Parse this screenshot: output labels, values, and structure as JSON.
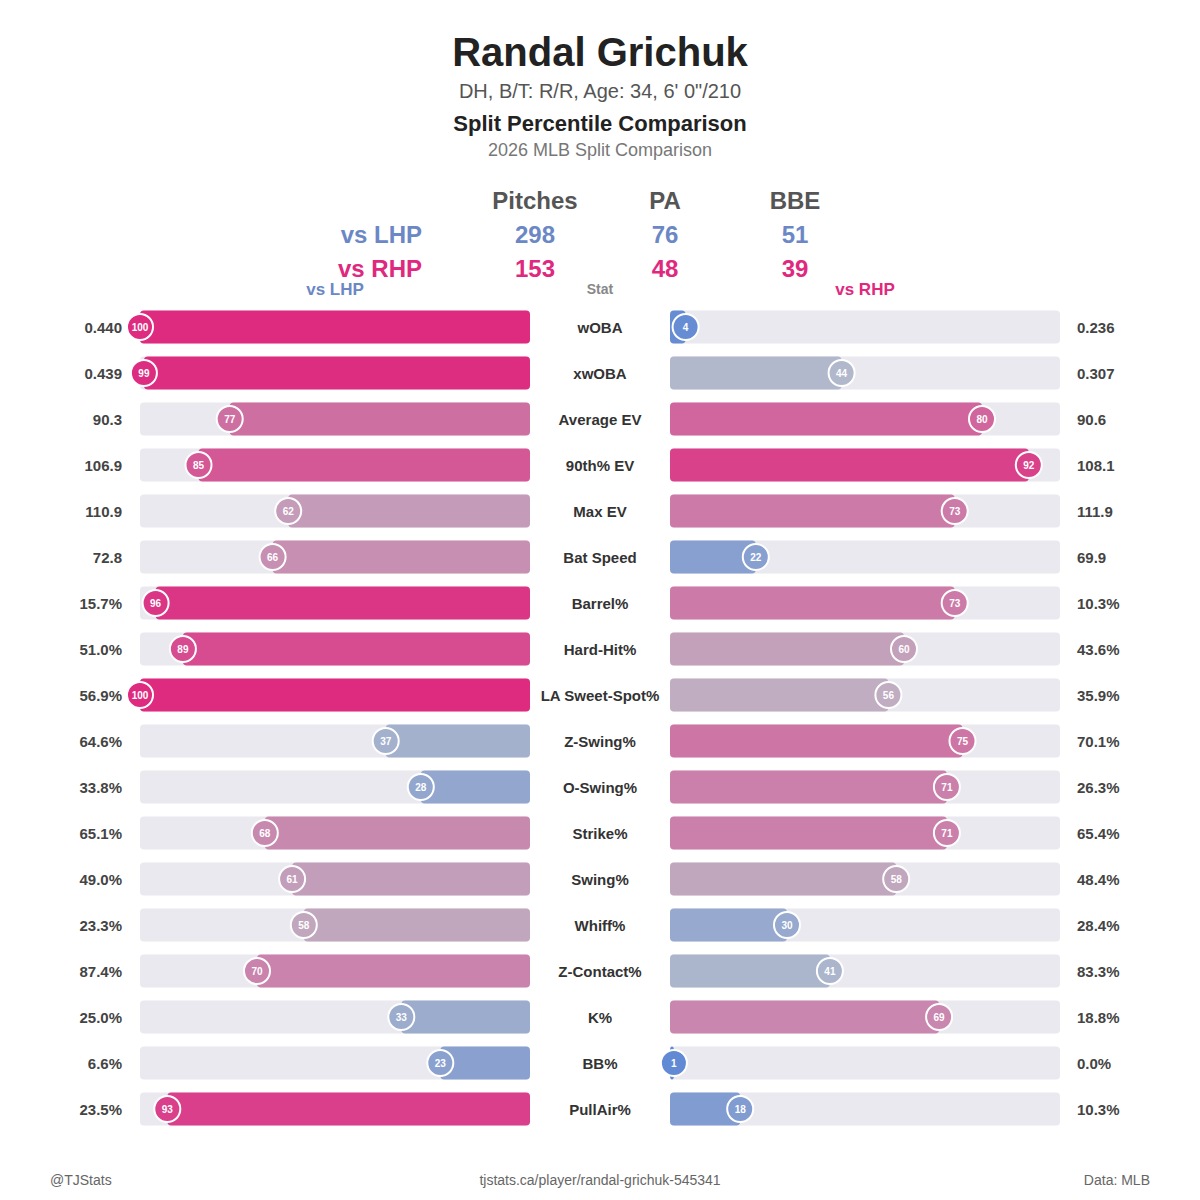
{
  "header": {
    "name": "Randal Grichuk",
    "bio": "DH, B/T: R/R, Age: 34, 6' 0\"/210"
  },
  "summary": {
    "columns": [
      "Pitches",
      "PA",
      "BBE"
    ],
    "rows": [
      {
        "label": "vs LHP",
        "values": [
          298,
          76,
          51
        ]
      },
      {
        "label": "vs RHP",
        "values": [
          153,
          48,
          39
        ]
      }
    ]
  },
  "footer": {
    "handle": "@TJStats",
    "url": "tjstats.ca/player/randal-grichuk-545341",
    "source": "Data: MLB"
  },
  "chart_data": {
    "type": "bar",
    "orientation": "horizontal",
    "title": "Split Percentile Comparison",
    "subtitle": "2026 MLB Split Comparison",
    "y_label": "Stat",
    "categories": [
      "wOBA",
      "xwOBA",
      "Average EV",
      "90th% EV",
      "Max EV",
      "Bat Speed",
      "Barrel%",
      "Hard-Hit%",
      "LA Sweet-Spot%",
      "Z-Swing%",
      "O-Swing%",
      "Strike%",
      "Swing%",
      "Whiff%",
      "Z-Contact%",
      "K%",
      "BB%",
      "PullAir%"
    ],
    "xlim": [
      0,
      100
    ],
    "tick_labels": false,
    "data_labels": true,
    "series": [
      {
        "name": "vs LHP",
        "color": "#6b87c5",
        "values": [
          100,
          99,
          77,
          85,
          62,
          66,
          96,
          89,
          100,
          37,
          28,
          68,
          61,
          58,
          70,
          33,
          23,
          93
        ],
        "stat_labels": [
          "0.440",
          "0.439",
          "90.3",
          "106.9",
          "110.9",
          "72.8",
          "15.7%",
          "51.0%",
          "56.9%",
          "64.6%",
          "33.8%",
          "65.1%",
          "49.0%",
          "23.3%",
          "87.4%",
          "25.0%",
          "6.6%",
          "23.5%"
        ]
      },
      {
        "name": "vs RHP",
        "color": "#e0287e",
        "values": [
          4,
          44,
          80,
          92,
          73,
          22,
          73,
          60,
          56,
          75,
          71,
          71,
          58,
          30,
          41,
          69,
          1,
          18
        ],
        "stat_labels": [
          "0.236",
          "0.307",
          "90.6",
          "108.1",
          "111.9",
          "69.9",
          "10.3%",
          "43.6%",
          "35.9%",
          "70.1%",
          "26.3%",
          "65.4%",
          "48.4%",
          "28.4%",
          "83.3%",
          "18.8%",
          "0.0%",
          "10.3%"
        ]
      }
    ]
  }
}
